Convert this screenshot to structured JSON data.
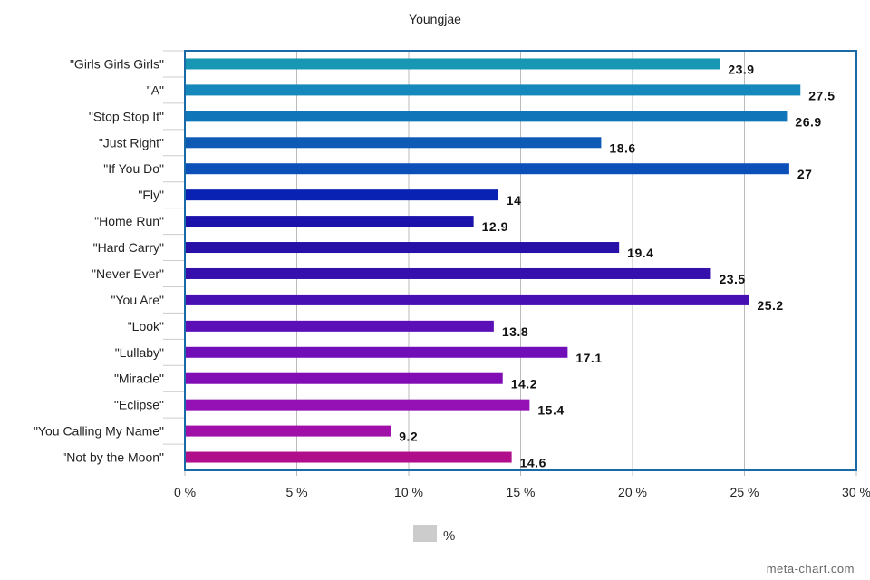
{
  "chart_data": {
    "type": "bar",
    "orientation": "horizontal",
    "title": "Youngjae",
    "categories": [
      "\"Girls Girls Girls\"",
      "\"A\"",
      "\"Stop Stop It\"",
      "\"Just Right\"",
      "\"If You Do\"",
      "\"Fly\"",
      "\"Home Run\"",
      "\"Hard Carry\"",
      "\"Never Ever\"",
      "\"You Are\"",
      "\"Look\"",
      "\"Lullaby\"",
      "\"Miracle\"",
      "\"Eclipse\"",
      "\"You Calling My Name\"",
      "\"Not by the Moon\""
    ],
    "series": [
      {
        "name": "%",
        "values": [
          23.9,
          27.5,
          26.9,
          18.6,
          27,
          14,
          12.9,
          19.4,
          23.5,
          25.2,
          13.8,
          17.1,
          14.2,
          15.4,
          9.2,
          14.6
        ]
      }
    ],
    "xlim": [
      0,
      30
    ],
    "xticks": [
      0,
      5,
      10,
      15,
      20,
      25,
      30
    ],
    "xtick_labels": [
      "0 %",
      "5 %",
      "10 %",
      "15 %",
      "20 %",
      "25 %",
      "30 %"
    ],
    "grid": true,
    "legend_placement": "bottom",
    "bar_colors": [
      "#1797b4",
      "#1588bb",
      "#1176b9",
      "#0e5bb6",
      "#0b4fb8",
      "#0a22b3",
      "#1b12ab",
      "#2610a8",
      "#3510ad",
      "#4710b3",
      "#5a0fb7",
      "#700eb8",
      "#810db5",
      "#9510b5",
      "#a010a8",
      "#b00e8a"
    ],
    "frame_color": "#1a6aa8",
    "grid_color": "#bbbbbb",
    "legend_swatch_color": "#cccccc"
  },
  "watermark": "meta-chart.com"
}
